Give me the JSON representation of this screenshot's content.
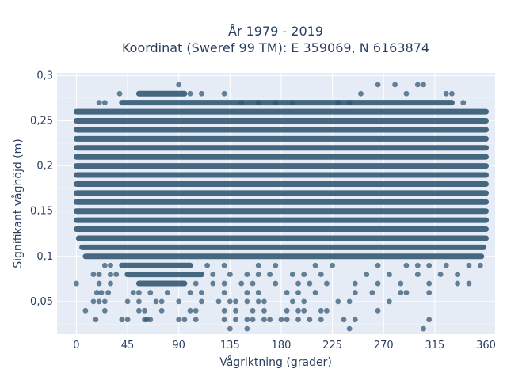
{
  "chart_data": {
    "type": "scatter",
    "title_line1": "År 1979 - 2019",
    "title_line2": "Koordinat (Sweref 99 TM): E 359069, N 6163874",
    "xlabel": "Vågriktning (grader)",
    "ylabel": "Signifikant våghöjd (m)",
    "xlim": [
      -17,
      368
    ],
    "ylim": [
      0.014,
      0.303
    ],
    "x_ticks": [
      0,
      45,
      90,
      135,
      180,
      225,
      270,
      315,
      360
    ],
    "x_tick_labels": [
      "0",
      "45",
      "90",
      "135",
      "180",
      "225",
      "270",
      "315",
      "360"
    ],
    "y_ticks": [
      0.05,
      0.1,
      0.15,
      0.2,
      0.25,
      0.3
    ],
    "y_tick_labels": [
      "0,05",
      "0,1",
      "0,15",
      "0,2",
      "0,25",
      "0,3"
    ],
    "grid": true,
    "marker_color": "#2f5470",
    "plot_bg": "#e5ecf6",
    "bands": [
      {
        "y": 0.26,
        "x0": 0,
        "x1": 360
      },
      {
        "y": 0.25,
        "x0": 0,
        "x1": 360
      },
      {
        "y": 0.24,
        "x0": 0,
        "x1": 360
      },
      {
        "y": 0.23,
        "x0": 0,
        "x1": 360
      },
      {
        "y": 0.22,
        "x0": 0,
        "x1": 360
      },
      {
        "y": 0.21,
        "x0": 0,
        "x1": 360
      },
      {
        "y": 0.2,
        "x0": 0,
        "x1": 360
      },
      {
        "y": 0.19,
        "x0": 0,
        "x1": 360
      },
      {
        "y": 0.18,
        "x0": 0,
        "x1": 360
      },
      {
        "y": 0.17,
        "x0": 0,
        "x1": 360
      },
      {
        "y": 0.16,
        "x0": 0,
        "x1": 360
      },
      {
        "y": 0.15,
        "x0": 0,
        "x1": 360
      },
      {
        "y": 0.14,
        "x0": 0,
        "x1": 360
      },
      {
        "y": 0.13,
        "x0": 0,
        "x1": 360
      },
      {
        "y": 0.12,
        "x0": 2,
        "x1": 360
      },
      {
        "y": 0.11,
        "x0": 5,
        "x1": 358
      },
      {
        "y": 0.1,
        "x0": 8,
        "x1": 356
      },
      {
        "y": 0.09,
        "x0": 40,
        "x1": 100
      },
      {
        "y": 0.08,
        "x0": 45,
        "x1": 110
      },
      {
        "y": 0.07,
        "x0": 55,
        "x1": 95
      },
      {
        "y": 0.28,
        "x0": 55,
        "x1": 95
      },
      {
        "y": 0.27,
        "x0": 40,
        "x1": 330
      }
    ],
    "points": [
      [
        90,
        0.29
      ],
      [
        265,
        0.29
      ],
      [
        280,
        0.29
      ],
      [
        300,
        0.29
      ],
      [
        305,
        0.29
      ],
      [
        38,
        0.28
      ],
      [
        100,
        0.28
      ],
      [
        110,
        0.28
      ],
      [
        130,
        0.28
      ],
      [
        250,
        0.28
      ],
      [
        290,
        0.28
      ],
      [
        325,
        0.28
      ],
      [
        330,
        0.28
      ],
      [
        20,
        0.27
      ],
      [
        25,
        0.27
      ],
      [
        145,
        0.27
      ],
      [
        160,
        0.27
      ],
      [
        175,
        0.27
      ],
      [
        190,
        0.27
      ],
      [
        230,
        0.27
      ],
      [
        240,
        0.27
      ],
      [
        340,
        0.27
      ],
      [
        25,
        0.09
      ],
      [
        30,
        0.09
      ],
      [
        115,
        0.09
      ],
      [
        130,
        0.09
      ],
      [
        160,
        0.09
      ],
      [
        175,
        0.09
      ],
      [
        210,
        0.09
      ],
      [
        225,
        0.09
      ],
      [
        265,
        0.09
      ],
      [
        290,
        0.09
      ],
      [
        300,
        0.09
      ],
      [
        310,
        0.09
      ],
      [
        325,
        0.09
      ],
      [
        345,
        0.09
      ],
      [
        355,
        0.09
      ],
      [
        15,
        0.08
      ],
      [
        20,
        0.08
      ],
      [
        30,
        0.08
      ],
      [
        35,
        0.08
      ],
      [
        120,
        0.08
      ],
      [
        135,
        0.08
      ],
      [
        150,
        0.08
      ],
      [
        160,
        0.08
      ],
      [
        170,
        0.08
      ],
      [
        190,
        0.08
      ],
      [
        200,
        0.08
      ],
      [
        215,
        0.08
      ],
      [
        255,
        0.08
      ],
      [
        275,
        0.08
      ],
      [
        300,
        0.08
      ],
      [
        320,
        0.08
      ],
      [
        335,
        0.08
      ],
      [
        0,
        0.07
      ],
      [
        20,
        0.07
      ],
      [
        30,
        0.07
      ],
      [
        105,
        0.07
      ],
      [
        120,
        0.07
      ],
      [
        130,
        0.07
      ],
      [
        145,
        0.07
      ],
      [
        155,
        0.07
      ],
      [
        175,
        0.07
      ],
      [
        195,
        0.07
      ],
      [
        205,
        0.07
      ],
      [
        220,
        0.07
      ],
      [
        245,
        0.07
      ],
      [
        265,
        0.07
      ],
      [
        285,
        0.07
      ],
      [
        310,
        0.07
      ],
      [
        335,
        0.07
      ],
      [
        345,
        0.07
      ],
      [
        18,
        0.06
      ],
      [
        22,
        0.06
      ],
      [
        28,
        0.06
      ],
      [
        50,
        0.06
      ],
      [
        55,
        0.06
      ],
      [
        65,
        0.06
      ],
      [
        80,
        0.06
      ],
      [
        100,
        0.06
      ],
      [
        110,
        0.06
      ],
      [
        130,
        0.06
      ],
      [
        150,
        0.06
      ],
      [
        160,
        0.06
      ],
      [
        185,
        0.06
      ],
      [
        195,
        0.06
      ],
      [
        210,
        0.06
      ],
      [
        245,
        0.06
      ],
      [
        260,
        0.06
      ],
      [
        285,
        0.06
      ],
      [
        290,
        0.06
      ],
      [
        310,
        0.06
      ],
      [
        15,
        0.05
      ],
      [
        20,
        0.05
      ],
      [
        25,
        0.05
      ],
      [
        45,
        0.05
      ],
      [
        55,
        0.05
      ],
      [
        70,
        0.05
      ],
      [
        75,
        0.05
      ],
      [
        90,
        0.05
      ],
      [
        110,
        0.05
      ],
      [
        125,
        0.05
      ],
      [
        135,
        0.05
      ],
      [
        140,
        0.05
      ],
      [
        150,
        0.05
      ],
      [
        160,
        0.05
      ],
      [
        165,
        0.05
      ],
      [
        190,
        0.05
      ],
      [
        200,
        0.05
      ],
      [
        230,
        0.05
      ],
      [
        240,
        0.05
      ],
      [
        275,
        0.05
      ],
      [
        8,
        0.04
      ],
      [
        25,
        0.04
      ],
      [
        55,
        0.04
      ],
      [
        60,
        0.04
      ],
      [
        75,
        0.04
      ],
      [
        100,
        0.04
      ],
      [
        105,
        0.04
      ],
      [
        130,
        0.04
      ],
      [
        140,
        0.04
      ],
      [
        155,
        0.04
      ],
      [
        165,
        0.04
      ],
      [
        185,
        0.04
      ],
      [
        195,
        0.04
      ],
      [
        200,
        0.04
      ],
      [
        215,
        0.04
      ],
      [
        220,
        0.04
      ],
      [
        265,
        0.04
      ],
      [
        17,
        0.03
      ],
      [
        40,
        0.03
      ],
      [
        45,
        0.03
      ],
      [
        60,
        0.03
      ],
      [
        62,
        0.03
      ],
      [
        65,
        0.03
      ],
      [
        90,
        0.03
      ],
      [
        95,
        0.03
      ],
      [
        105,
        0.03
      ],
      [
        130,
        0.03
      ],
      [
        140,
        0.03
      ],
      [
        150,
        0.03
      ],
      [
        155,
        0.03
      ],
      [
        165,
        0.03
      ],
      [
        170,
        0.03
      ],
      [
        180,
        0.03
      ],
      [
        185,
        0.03
      ],
      [
        195,
        0.03
      ],
      [
        205,
        0.03
      ],
      [
        215,
        0.03
      ],
      [
        235,
        0.03
      ],
      [
        245,
        0.03
      ],
      [
        310,
        0.03
      ],
      [
        135,
        0.02
      ],
      [
        150,
        0.02
      ],
      [
        240,
        0.02
      ],
      [
        305,
        0.02
      ]
    ]
  }
}
